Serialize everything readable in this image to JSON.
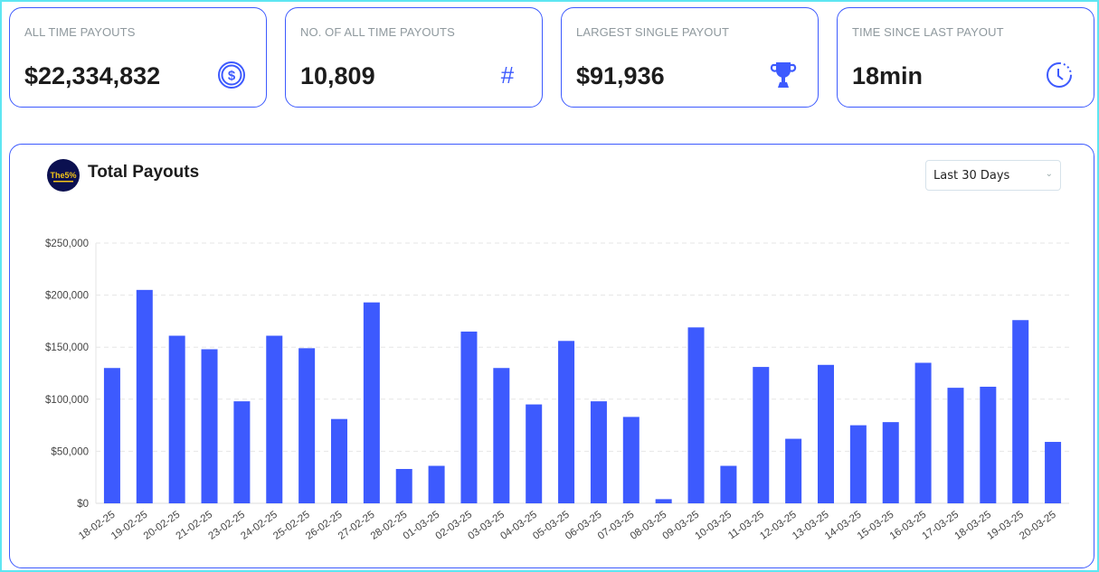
{
  "accent": "#3d5afe",
  "stats": [
    {
      "label": "ALL TIME PAYOUTS",
      "value": "$22,334,832",
      "icon": "dollar-coin-icon"
    },
    {
      "label": "NO. OF ALL TIME PAYOUTS",
      "value": "10,809",
      "icon": "hash-icon"
    },
    {
      "label": "LARGEST SINGLE PAYOUT",
      "value": "$91,936",
      "icon": "trophy-icon"
    },
    {
      "label": "TIME SINCE LAST PAYOUT",
      "value": "18min",
      "icon": "clock-icon"
    }
  ],
  "chart_panel": {
    "title": "Total Payouts",
    "logo_text": "The 5%ers",
    "range_select": "Last 30 Days"
  },
  "chart_data": {
    "type": "bar",
    "title": "",
    "xlabel": "",
    "ylabel": "",
    "ylim": [
      0,
      250000
    ],
    "yticks": [
      "$0",
      "$50,000",
      "$100,000",
      "$150,000",
      "$200,000",
      "$250,000"
    ],
    "grid": true,
    "bar_color": "#3d5afe",
    "categories": [
      "18-02-25",
      "19-02-25",
      "20-02-25",
      "21-02-25",
      "23-02-25",
      "24-02-25",
      "25-02-25",
      "26-02-25",
      "27-02-25",
      "28-02-25",
      "01-03-25",
      "02-03-25",
      "03-03-25",
      "04-03-25",
      "05-03-25",
      "06-03-25",
      "07-03-25",
      "08-03-25",
      "09-03-25",
      "10-03-25",
      "11-03-25",
      "12-03-25",
      "13-03-25",
      "14-03-25",
      "15-03-25",
      "16-03-25",
      "17-03-25",
      "18-03-25",
      "19-03-25",
      "20-03-25"
    ],
    "values": [
      130000,
      205000,
      161000,
      148000,
      98000,
      161000,
      149000,
      81000,
      193000,
      33000,
      36000,
      165000,
      130000,
      95000,
      156000,
      98000,
      83000,
      4000,
      169000,
      36000,
      131000,
      62000,
      133000,
      75000,
      78000,
      135000,
      111000,
      112000,
      176000,
      59000
    ]
  }
}
